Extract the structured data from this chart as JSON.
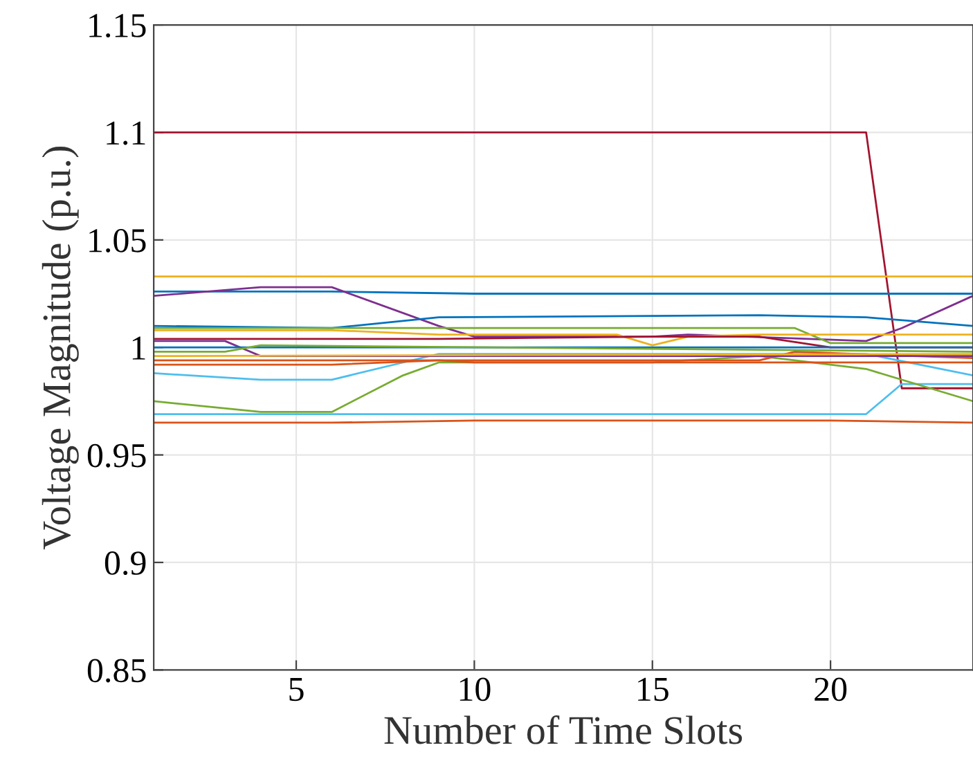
{
  "chart_data": {
    "type": "line",
    "xlabel": "Number of Time Slots",
    "ylabel": "Voltage Magnitude (p.u.)",
    "xlim": [
      1,
      24
    ],
    "xticks": [
      5,
      10,
      15,
      20
    ],
    "ylim": [
      0.85,
      1.15
    ],
    "yticks": [
      0.85,
      0.9,
      0.95,
      1,
      1.05,
      1.1,
      1.15
    ],
    "grid": true,
    "marker": "none",
    "line_style": "solid",
    "series": [
      {
        "color": "#a2142f",
        "x": [
          1,
          21,
          22,
          24
        ],
        "values": [
          1.1,
          1.1,
          0.981,
          0.981
        ]
      },
      {
        "color": "#edb120",
        "x": [
          1,
          24
        ],
        "values": [
          1.033,
          1.033
        ]
      },
      {
        "color": "#0072bd",
        "x": [
          1,
          6,
          10,
          20,
          24
        ],
        "values": [
          1.026,
          1.026,
          1.025,
          1.025,
          1.025
        ]
      },
      {
        "color": "#7e2f8e",
        "x": [
          1,
          4,
          6,
          9,
          10,
          15,
          16,
          21,
          22,
          24
        ],
        "values": [
          1.024,
          1.028,
          1.028,
          1.01,
          1.005,
          1.005,
          1.006,
          1.003,
          1.009,
          1.024
        ]
      },
      {
        "color": "#4dbeee",
        "x": [
          1,
          21,
          22,
          24
        ],
        "values": [
          0.969,
          0.969,
          0.983,
          0.983
        ]
      },
      {
        "color": "#d95319",
        "x": [
          1,
          6,
          10,
          20,
          24
        ],
        "values": [
          0.965,
          0.965,
          0.966,
          0.966,
          0.965
        ]
      },
      {
        "color": "#77ac30",
        "x": [
          1,
          4,
          6,
          8,
          9,
          15,
          18,
          20,
          21,
          24
        ],
        "values": [
          0.975,
          0.97,
          0.97,
          0.987,
          0.993,
          0.993,
          0.996,
          0.992,
          0.99,
          0.975
        ]
      },
      {
        "color": "#4dbeee",
        "x": [
          1,
          4,
          6,
          9,
          21,
          24
        ],
        "values": [
          0.988,
          0.985,
          0.985,
          0.997,
          0.997,
          0.987
        ]
      },
      {
        "color": "#0072bd",
        "x": [
          1,
          6,
          9,
          18,
          21,
          24
        ],
        "values": [
          1.01,
          1.009,
          1.014,
          1.015,
          1.014,
          1.01
        ]
      },
      {
        "color": "#77ac30",
        "x": [
          1,
          6,
          9,
          19,
          20,
          24
        ],
        "values": [
          1.009,
          1.009,
          1.009,
          1.009,
          1.002,
          1.002
        ]
      },
      {
        "color": "#edb120",
        "x": [
          1,
          6,
          9,
          14,
          15,
          16,
          18,
          24
        ],
        "values": [
          1.008,
          1.008,
          1.006,
          1.006,
          1.001,
          1.005,
          1.006,
          1.006
        ]
      },
      {
        "color": "#d95319",
        "x": [
          1,
          6,
          9,
          14,
          16,
          18,
          19,
          24
        ],
        "values": [
          0.992,
          0.992,
          0.994,
          0.994,
          0.994,
          0.994,
          0.998,
          0.995
        ]
      },
      {
        "color": "#a2142f",
        "x": [
          1,
          6,
          9,
          15,
          18,
          20,
          24
        ],
        "values": [
          1.004,
          1.004,
          1.004,
          1.005,
          1.005,
          1.0,
          1.0
        ]
      },
      {
        "color": "#7e2f8e",
        "x": [
          1,
          3,
          4,
          24
        ],
        "values": [
          1.003,
          1.003,
          0.996,
          0.996
        ]
      },
      {
        "color": "#0072bd",
        "x": [
          1,
          24
        ],
        "values": [
          1.0,
          1.0
        ]
      },
      {
        "color": "#77ac30",
        "x": [
          1,
          3,
          4,
          24
        ],
        "values": [
          0.998,
          0.998,
          1.001,
          0.998
        ]
      },
      {
        "color": "#d95319",
        "x": [
          1,
          9,
          10,
          21,
          24
        ],
        "values": [
          0.994,
          0.994,
          0.993,
          0.993,
          0.993
        ]
      },
      {
        "color": "#edb120",
        "x": [
          1,
          24
        ],
        "values": [
          0.996,
          0.997
        ]
      }
    ]
  }
}
